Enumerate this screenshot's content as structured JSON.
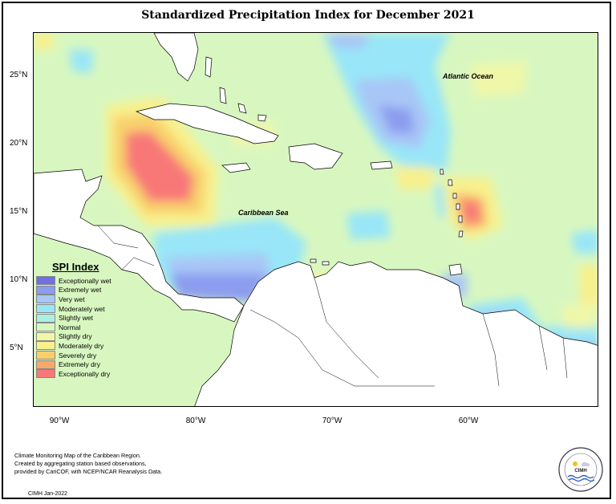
{
  "title": "Standardized Precipitation Index for December 2021",
  "map": {
    "labels": {
      "atlantic": "Atlantic Ocean",
      "caribbean": "Caribbean Sea"
    },
    "lat_ticks": [
      "25°N",
      "20°N",
      "15°N",
      "10°N",
      "5°N"
    ],
    "lon_ticks": [
      "90°W",
      "80°W",
      "70°W",
      "60°W"
    ],
    "extent": {
      "lon": [
        -91.5,
        -50
      ],
      "lat": [
        1.5,
        28.5
      ]
    }
  },
  "legend": {
    "title": "SPI Index",
    "items": [
      {
        "label": "Exceptionally wet",
        "color": "#7070e0"
      },
      {
        "label": "Extremely wet",
        "color": "#8c9cef"
      },
      {
        "label": "Very wet",
        "color": "#a8c6f6"
      },
      {
        "label": "Moderately wet",
        "color": "#98e6f8"
      },
      {
        "label": "Slightly wet",
        "color": "#aaf0e0"
      },
      {
        "label": "Normal",
        "color": "#d8f7c0"
      },
      {
        "label": "Slightly dry",
        "color": "#f0f7a8"
      },
      {
        "label": "Moderately dry",
        "color": "#f8f08c"
      },
      {
        "label": "Severely dry",
        "color": "#f8d06c"
      },
      {
        "label": "Extremely dry",
        "color": "#f8a868"
      },
      {
        "label": "Exceptionally dry",
        "color": "#f87878"
      }
    ]
  },
  "footer": {
    "line1": "Climate Monitoring Map of the Caribbean Region.",
    "line2": "Created by aggregating station based observations,",
    "line3": "provided by CariCOF, with NCEP/NCAR Reanalysis Data.",
    "credit": "CIMH Jan-2022"
  },
  "logo": {
    "text": "CIMH"
  }
}
